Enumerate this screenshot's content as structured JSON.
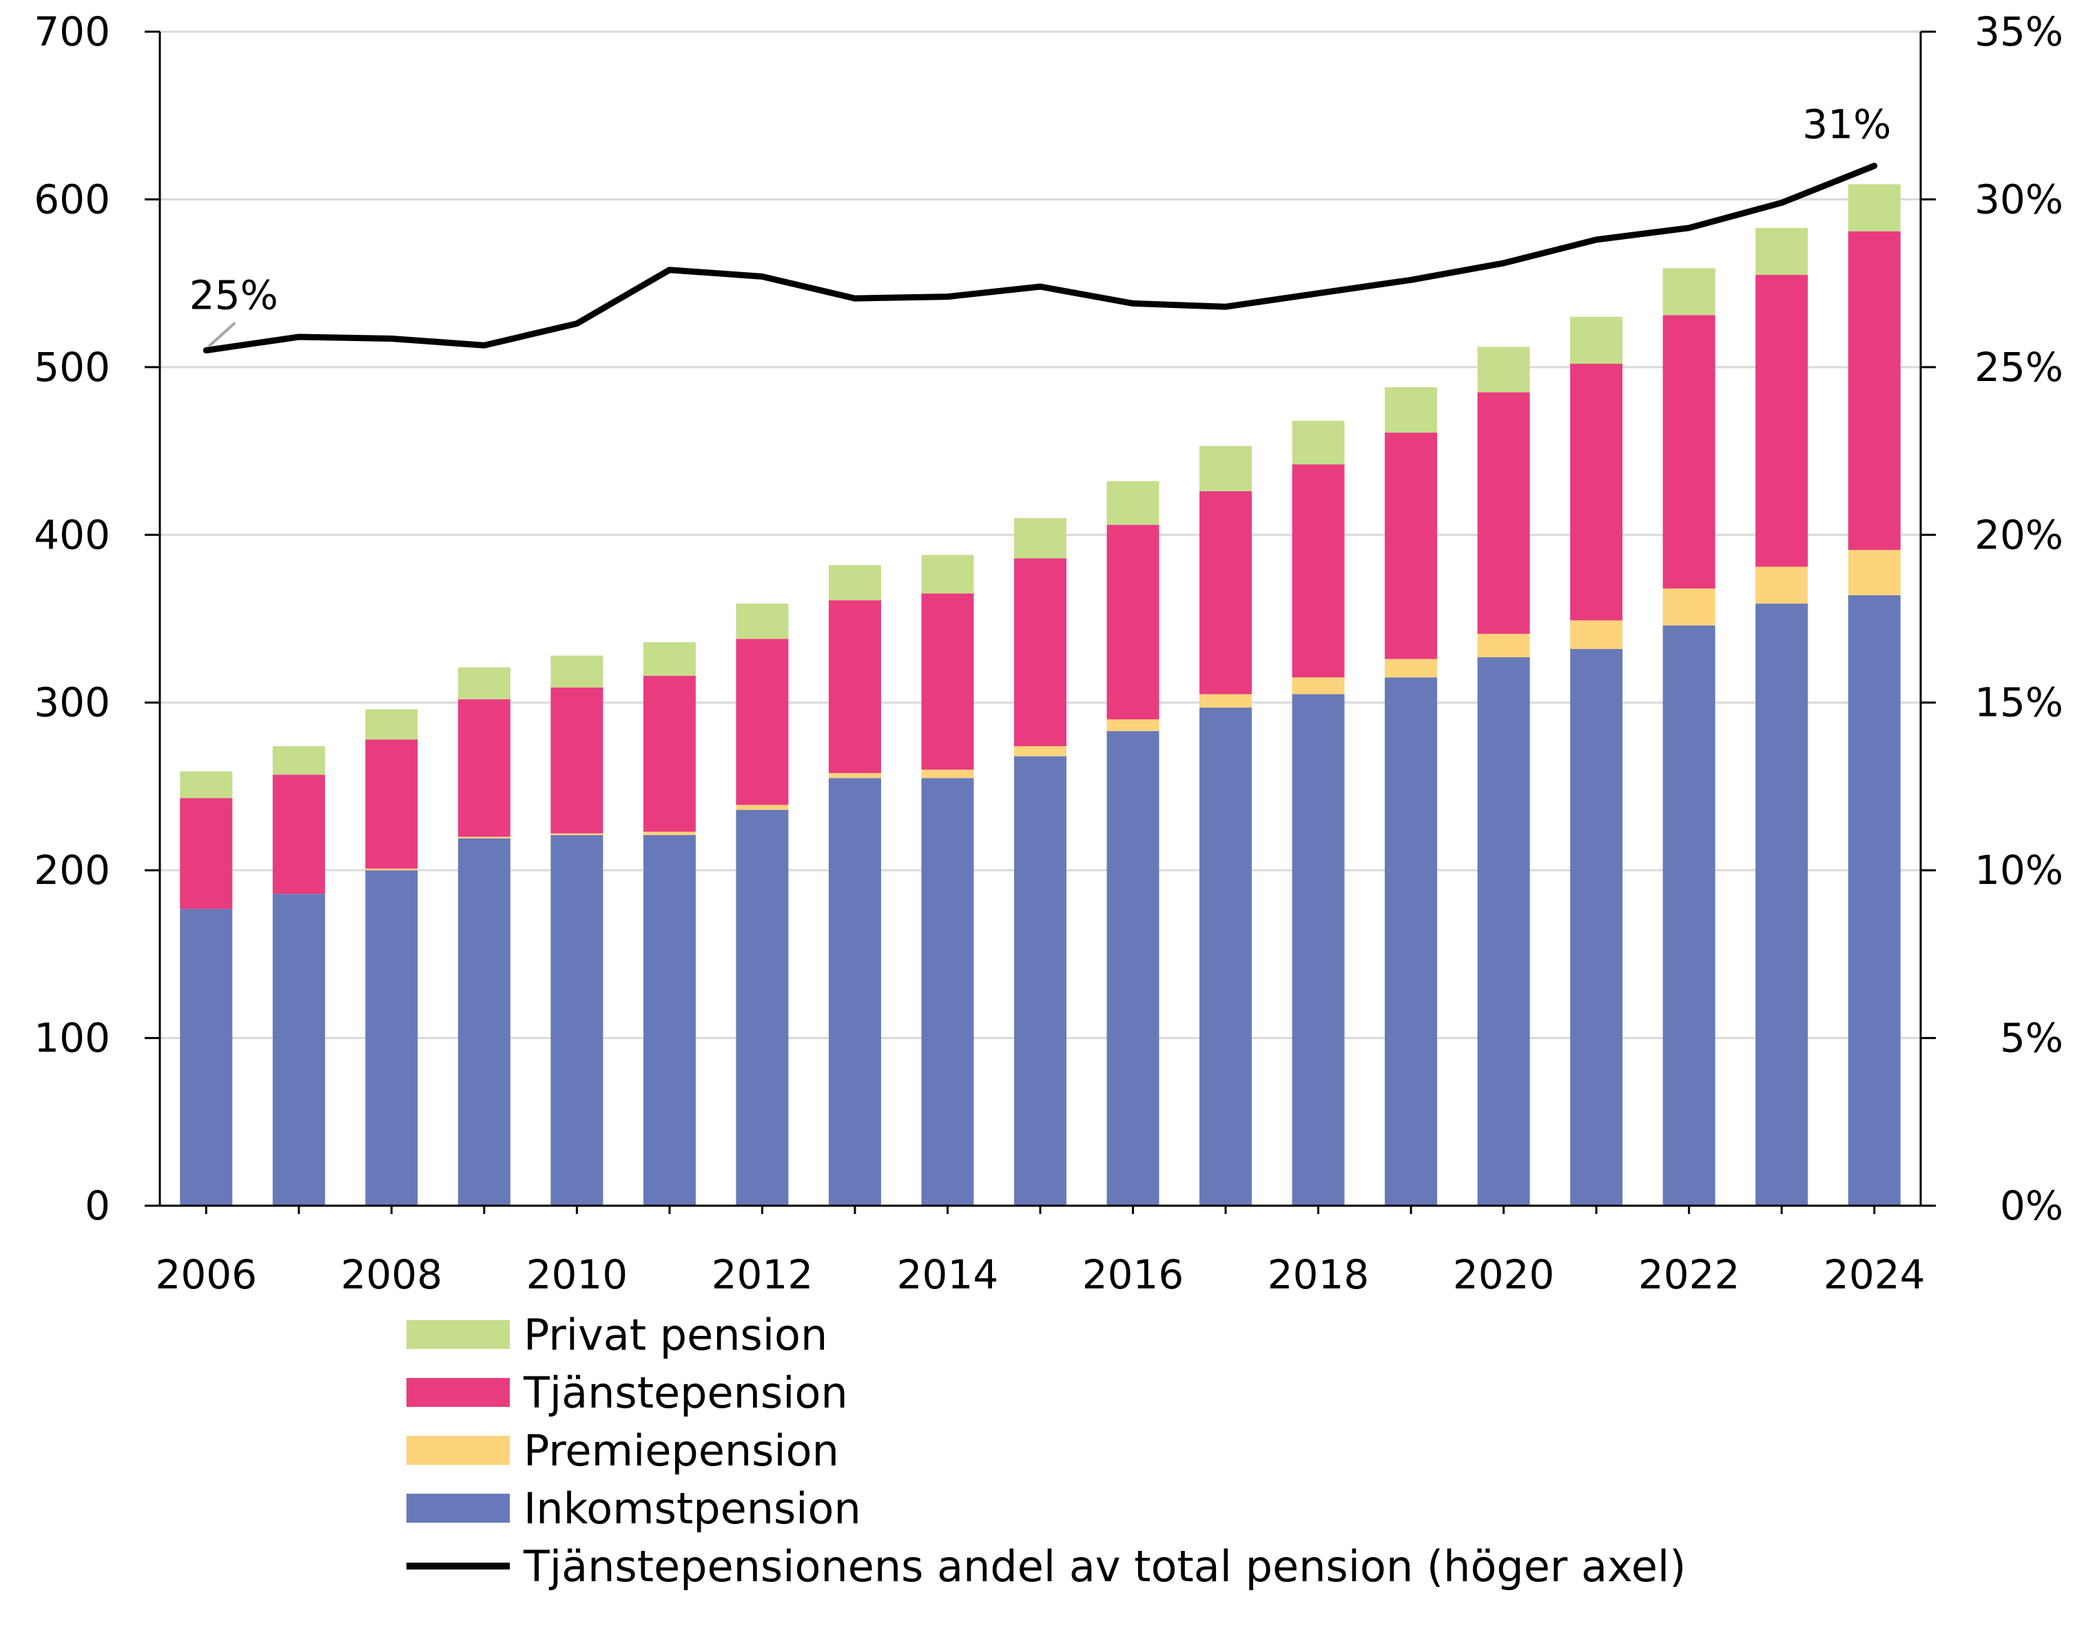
{
  "chart_data": {
    "type": "bar",
    "stacked": true,
    "title": "",
    "xlabel": "",
    "ylabel": "",
    "x": [
      2006,
      2007,
      2008,
      2009,
      2010,
      2011,
      2012,
      2013,
      2014,
      2015,
      2016,
      2017,
      2018,
      2019,
      2020,
      2021,
      2022,
      2023,
      2024
    ],
    "x_tick_labels": [
      "2006",
      "2008",
      "2010",
      "2012",
      "2014",
      "2016",
      "2018",
      "2020",
      "2022",
      "2024"
    ],
    "ylim": [
      0,
      700
    ],
    "y_ticks": [
      0,
      100,
      200,
      300,
      400,
      500,
      600,
      700
    ],
    "y_tick_labels": [
      "0",
      "100",
      "200",
      "300",
      "400",
      "500",
      "600",
      "700"
    ],
    "y2lim": [
      0,
      35
    ],
    "y2_ticks": [
      0,
      5,
      10,
      15,
      20,
      25,
      30,
      35
    ],
    "y2_tick_labels": [
      "0%",
      "5%",
      "10%",
      "15%",
      "20%",
      "25%",
      "30%",
      "35%"
    ],
    "grid": true,
    "legend_position": "bottom",
    "series": [
      {
        "name": "Inkomstpension",
        "kind": "bar",
        "color": "#6879B9",
        "values": [
          177,
          186,
          200,
          219,
          221,
          221,
          236,
          255,
          255,
          268,
          283,
          297,
          305,
          315,
          327,
          332,
          346,
          359,
          364
        ]
      },
      {
        "name": "Premiepension",
        "kind": "bar",
        "color": "#FDD37B",
        "values": [
          0,
          0,
          1,
          1,
          1,
          2,
          3,
          3,
          5,
          6,
          7,
          8,
          10,
          11,
          14,
          17,
          22,
          22,
          27
        ]
      },
      {
        "name": "Tjänstepension",
        "kind": "bar",
        "color": "#E83C7F",
        "values": [
          66,
          71,
          77,
          82,
          87,
          93,
          99,
          103,
          105,
          112,
          116,
          121,
          127,
          135,
          144,
          153,
          163,
          174,
          190
        ]
      },
      {
        "name": "Privat pension",
        "kind": "bar",
        "color": "#C6DD8C",
        "values": [
          16,
          17,
          18,
          19,
          19,
          20,
          21,
          21,
          23,
          24,
          26,
          27,
          26,
          27,
          27,
          28,
          28,
          28,
          28
        ]
      },
      {
        "name": "Tjänstepensionens andel av total pension (höger axel)",
        "kind": "line",
        "axis": "right",
        "color": "#000000",
        "values": [
          25.5,
          25.9,
          25.85,
          25.65,
          26.3,
          27.9,
          27.7,
          27.05,
          27.1,
          27.4,
          26.9,
          26.8,
          27.2,
          27.6,
          28.1,
          28.8,
          29.15,
          29.9,
          31.0
        ]
      }
    ],
    "annotations": [
      {
        "text": "25%",
        "x": 2006,
        "value": 25.5,
        "axis": "right"
      },
      {
        "text": "31%",
        "x": 2024,
        "value": 31.0,
        "axis": "right"
      }
    ]
  }
}
